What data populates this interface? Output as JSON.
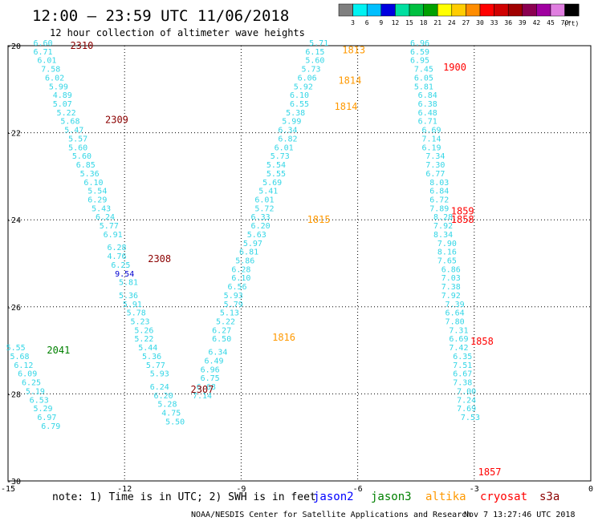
{
  "header": {
    "title": "12:00 – 23:59 UTC 11/06/2018",
    "subtitle": "12 hour collection of altimeter wave heights"
  },
  "colorbar": {
    "unit": "(ft)",
    "labels": [
      "3",
      "6",
      "9",
      "12",
      "15",
      "18",
      "21",
      "24",
      "27",
      "30",
      "33",
      "36",
      "39",
      "42",
      "45",
      "70"
    ],
    "colors": [
      "#7f7f7f",
      "#00f2f2",
      "#00bfff",
      "#0000e0",
      "#00dfa0",
      "#00c040",
      "#00a000",
      "#ffff00",
      "#ffcc00",
      "#ff8c00",
      "#ff0000",
      "#d00000",
      "#a00000",
      "#8b0050",
      "#a000a0",
      "#e07ee0",
      "#000000"
    ]
  },
  "chart_data": {
    "type": "scatter",
    "xlim": [
      -15,
      0
    ],
    "ylim": [
      -30,
      -20
    ],
    "xticks": [
      -15,
      -12,
      -9,
      -6,
      -3,
      0
    ],
    "yticks": [
      -20,
      -22,
      -24,
      -26,
      -28,
      -30
    ],
    "grid": true,
    "series": [
      {
        "name": "jason2",
        "color": "#34d6e6",
        "points": [
          [
            -14.1,
            -20.0,
            "6.60"
          ],
          [
            -14.1,
            -20.2,
            "6.71"
          ],
          [
            -14.0,
            -20.4,
            "6.01"
          ],
          [
            -13.9,
            -20.6,
            "7.58"
          ],
          [
            -13.8,
            -20.8,
            "6.02"
          ],
          [
            -13.7,
            -21.0,
            "5.99"
          ],
          [
            -13.6,
            -21.2,
            "4.89"
          ],
          [
            -13.6,
            -21.4,
            "5.07"
          ],
          [
            -13.5,
            -21.6,
            "5.22"
          ],
          [
            -13.4,
            -21.8,
            "5.68"
          ],
          [
            -13.3,
            -22.0,
            "5.47"
          ],
          [
            -13.2,
            -22.2,
            "5.57"
          ],
          [
            -13.2,
            -22.4,
            "5.60"
          ],
          [
            -13.1,
            -22.6,
            "5.60"
          ],
          [
            -13.0,
            -22.8,
            "6.85"
          ],
          [
            -12.9,
            -23.0,
            "5.36"
          ],
          [
            -12.8,
            -23.2,
            "6.10"
          ],
          [
            -12.7,
            -23.4,
            "5.54"
          ],
          [
            -12.7,
            -23.6,
            "6.29"
          ],
          [
            -12.6,
            -23.8,
            "5.43"
          ],
          [
            -12.5,
            -24.0,
            "6.24"
          ],
          [
            -12.4,
            -24.2,
            "5.77"
          ],
          [
            -12.3,
            -24.4,
            "6.91"
          ],
          [
            -12.2,
            -24.7,
            "6.28"
          ],
          [
            -12.2,
            -24.9,
            "4.76"
          ],
          [
            -12.1,
            -25.1,
            "6.25"
          ],
          [
            -11.9,
            -25.5,
            "5.81"
          ],
          [
            -11.9,
            -25.8,
            "5.36"
          ],
          [
            -11.8,
            -26.0,
            "5.91"
          ],
          [
            -11.7,
            -26.2,
            "5.78"
          ],
          [
            -11.6,
            -26.4,
            "5.23"
          ],
          [
            -11.5,
            -26.6,
            "5.26"
          ],
          [
            -11.5,
            -26.8,
            "5.22"
          ],
          [
            -11.4,
            -27.0,
            "5.44"
          ],
          [
            -11.3,
            -27.2,
            "5.36"
          ],
          [
            -11.2,
            -27.4,
            "5.77"
          ],
          [
            -11.1,
            -27.6,
            "5.93"
          ],
          [
            -11.1,
            -27.9,
            "6.24"
          ],
          [
            -11.0,
            -28.1,
            "6.20"
          ],
          [
            -10.9,
            -28.3,
            "5.28"
          ],
          [
            -10.8,
            -28.5,
            "4.75"
          ],
          [
            -10.7,
            -28.7,
            "5.50"
          ]
        ]
      },
      {
        "name": "jason2-b",
        "color": "#34d6e6",
        "points": [
          [
            -14.8,
            -27.0,
            "5.55"
          ],
          [
            -14.7,
            -27.2,
            "5.68"
          ],
          [
            -14.6,
            -27.4,
            "6.12"
          ],
          [
            -14.5,
            -27.6,
            "6.09"
          ],
          [
            -14.4,
            -27.8,
            "6.25"
          ],
          [
            -14.3,
            -28.0,
            "5.19"
          ],
          [
            -14.2,
            -28.2,
            "6.53"
          ],
          [
            -14.1,
            -28.4,
            "5.29"
          ],
          [
            -14.0,
            -28.6,
            "6.97"
          ],
          [
            -13.9,
            -28.8,
            "6.79"
          ]
        ]
      },
      {
        "name": "jason2-c",
        "color": "#34d6e6",
        "points": [
          [
            -7.0,
            -20.0,
            "5.71"
          ],
          [
            -7.1,
            -20.2,
            "6.15"
          ],
          [
            -7.1,
            -20.4,
            "5.60"
          ],
          [
            -7.2,
            -20.6,
            "5.73"
          ],
          [
            -7.3,
            -20.8,
            "6.06"
          ],
          [
            -7.4,
            -21.0,
            "5.92"
          ],
          [
            -7.5,
            -21.2,
            "6.10"
          ],
          [
            -7.5,
            -21.4,
            "6.55"
          ],
          [
            -7.6,
            -21.6,
            "5.38"
          ],
          [
            -7.7,
            -21.8,
            "5.99"
          ],
          [
            -7.8,
            -22.0,
            "6.34"
          ],
          [
            -7.8,
            -22.2,
            "6.82"
          ],
          [
            -7.9,
            -22.4,
            "6.01"
          ],
          [
            -8.0,
            -22.6,
            "5.73"
          ],
          [
            -8.1,
            -22.8,
            "5.54"
          ],
          [
            -8.1,
            -23.0,
            "5.55"
          ],
          [
            -8.2,
            -23.2,
            "5.69"
          ],
          [
            -8.3,
            -23.4,
            "5.41"
          ],
          [
            -8.4,
            -23.6,
            "6.01"
          ],
          [
            -8.4,
            -23.8,
            "5.72"
          ],
          [
            -8.5,
            -24.0,
            "6.33"
          ],
          [
            -8.5,
            -24.2,
            "6.20"
          ],
          [
            -8.6,
            -24.4,
            "5.63"
          ],
          [
            -8.7,
            -24.6,
            "5.97"
          ],
          [
            -8.8,
            -24.8,
            "6.81"
          ],
          [
            -8.9,
            -25.0,
            "5.86"
          ],
          [
            -9.0,
            -25.2,
            "6.28"
          ],
          [
            -9.0,
            -25.4,
            "6.10"
          ],
          [
            -9.1,
            -25.6,
            "6.56"
          ],
          [
            -9.2,
            -25.8,
            "5.93"
          ],
          [
            -9.2,
            -26.0,
            "5.79"
          ],
          [
            -9.3,
            -26.2,
            "5.13"
          ],
          [
            -9.4,
            -26.4,
            "5.22"
          ],
          [
            -9.5,
            -26.6,
            "6.27"
          ],
          [
            -9.5,
            -26.8,
            "6.50"
          ],
          [
            -9.6,
            -27.1,
            "6.34"
          ],
          [
            -9.7,
            -27.3,
            "6.49"
          ],
          [
            -9.8,
            -27.5,
            "6.96"
          ],
          [
            -9.8,
            -27.7,
            "6.75"
          ],
          [
            -9.9,
            -27.9,
            "6.68"
          ],
          [
            -10.0,
            -28.1,
            "7.14"
          ]
        ]
      },
      {
        "name": "jason2-d",
        "color": "#34d6e6",
        "points": [
          [
            -4.4,
            -20.0,
            "6.96"
          ],
          [
            -4.4,
            -20.2,
            "6.59"
          ],
          [
            -4.4,
            -20.4,
            "6.95"
          ],
          [
            -4.3,
            -20.6,
            "7.45"
          ],
          [
            -4.3,
            -20.8,
            "6.05"
          ],
          [
            -4.3,
            -21.0,
            "5.81"
          ],
          [
            -4.2,
            -21.2,
            "6.84"
          ],
          [
            -4.2,
            -21.4,
            "6.38"
          ],
          [
            -4.2,
            -21.6,
            "6.48"
          ],
          [
            -4.2,
            -21.8,
            "6.71"
          ],
          [
            -4.1,
            -22.0,
            "6.69"
          ],
          [
            -4.1,
            -22.2,
            "7.14"
          ],
          [
            -4.1,
            -22.4,
            "6.19"
          ],
          [
            -4.0,
            -22.6,
            "7.34"
          ],
          [
            -4.0,
            -22.8,
            "7.30"
          ],
          [
            -4.0,
            -23.0,
            "6.77"
          ],
          [
            -3.9,
            -23.2,
            "8.03"
          ],
          [
            -3.9,
            -23.4,
            "6.84"
          ],
          [
            -3.9,
            -23.6,
            "6.72"
          ],
          [
            -3.9,
            -23.8,
            "7.89"
          ],
          [
            -3.8,
            -24.0,
            "8.28"
          ],
          [
            -3.8,
            -24.2,
            "7.92"
          ],
          [
            -3.8,
            -24.4,
            "8.34"
          ],
          [
            -3.7,
            -24.6,
            "7.90"
          ],
          [
            -3.7,
            -24.8,
            "8.16"
          ],
          [
            -3.7,
            -25.0,
            "7.65"
          ],
          [
            -3.6,
            -25.2,
            "6.86"
          ],
          [
            -3.6,
            -25.4,
            "7.03"
          ],
          [
            -3.6,
            -25.6,
            "7.38"
          ],
          [
            -3.6,
            -25.8,
            "7.92"
          ],
          [
            -3.5,
            -26.0,
            "7.39"
          ],
          [
            -3.5,
            -26.2,
            "6.64"
          ],
          [
            -3.5,
            -26.4,
            "7.80"
          ],
          [
            -3.4,
            -26.6,
            "7.31"
          ],
          [
            -3.4,
            -26.8,
            "6.69"
          ],
          [
            -3.4,
            -27.0,
            "7.42"
          ],
          [
            -3.3,
            -27.2,
            "6.35"
          ],
          [
            -3.3,
            -27.4,
            "7.51"
          ],
          [
            -3.3,
            -27.6,
            "6.67"
          ],
          [
            -3.3,
            -27.8,
            "7.38"
          ],
          [
            -3.2,
            -28.0,
            "7.00"
          ],
          [
            -3.2,
            -28.2,
            "7.24"
          ],
          [
            -3.2,
            -28.4,
            "7.69"
          ],
          [
            -3.1,
            -28.6,
            "7.53"
          ]
        ]
      },
      {
        "name": "jason2-e",
        "color": "#0000d0",
        "points": [
          [
            -12.0,
            -25.3,
            "9.54"
          ]
        ]
      }
    ],
    "time_labels": [
      {
        "x": -13.4,
        "y": -20.0,
        "text": "2310",
        "color": "#8b0000"
      },
      {
        "x": -12.5,
        "y": -21.7,
        "text": "2309",
        "color": "#8b0000"
      },
      {
        "x": -11.4,
        "y": -24.9,
        "text": "2308",
        "color": "#8b0000"
      },
      {
        "x": -10.3,
        "y": -27.9,
        "text": "2307",
        "color": "#8b0000"
      },
      {
        "x": -14.0,
        "y": -27.0,
        "text": "2041",
        "color": "#008000"
      },
      {
        "x": -6.4,
        "y": -20.1,
        "text": "1813",
        "color": "#ff9900"
      },
      {
        "x": -6.5,
        "y": -20.8,
        "text": "1814",
        "color": "#ff9900"
      },
      {
        "x": -6.6,
        "y": -21.4,
        "text": "1814",
        "color": "#ff9900"
      },
      {
        "x": -7.3,
        "y": -24.0,
        "text": "1815",
        "color": "#ff9900"
      },
      {
        "x": -8.2,
        "y": -26.7,
        "text": "1816",
        "color": "#ff9900"
      },
      {
        "x": -3.8,
        "y": -20.5,
        "text": "1900",
        "color": "#ff0000"
      },
      {
        "x": -3.6,
        "y": -23.8,
        "text": "1859",
        "color": "#ff0000"
      },
      {
        "x": -3.6,
        "y": -24.0,
        "text": "1858",
        "color": "#ff0000"
      },
      {
        "x": -3.1,
        "y": -26.8,
        "text": "1858",
        "color": "#ff0000"
      },
      {
        "x": -2.9,
        "y": -29.8,
        "text": "1857",
        "color": "#ff0000"
      }
    ]
  },
  "legend": {
    "note": "note: 1) Time is in UTC; 2) SWH is in feet",
    "sats": [
      {
        "name": "jason2",
        "color": "#0000ff"
      },
      {
        "name": "jason3",
        "color": "#008000"
      },
      {
        "name": "altika",
        "color": "#ff9900"
      },
      {
        "name": "cryosat",
        "color": "#ff0000"
      },
      {
        "name": "s3a",
        "color": "#8b0000"
      }
    ]
  },
  "footer": {
    "credit": "NOAA/NESDIS Center for Satellite Applications and Research",
    "timestamp": "Nov  7 13:27:46 UTC 2018"
  }
}
